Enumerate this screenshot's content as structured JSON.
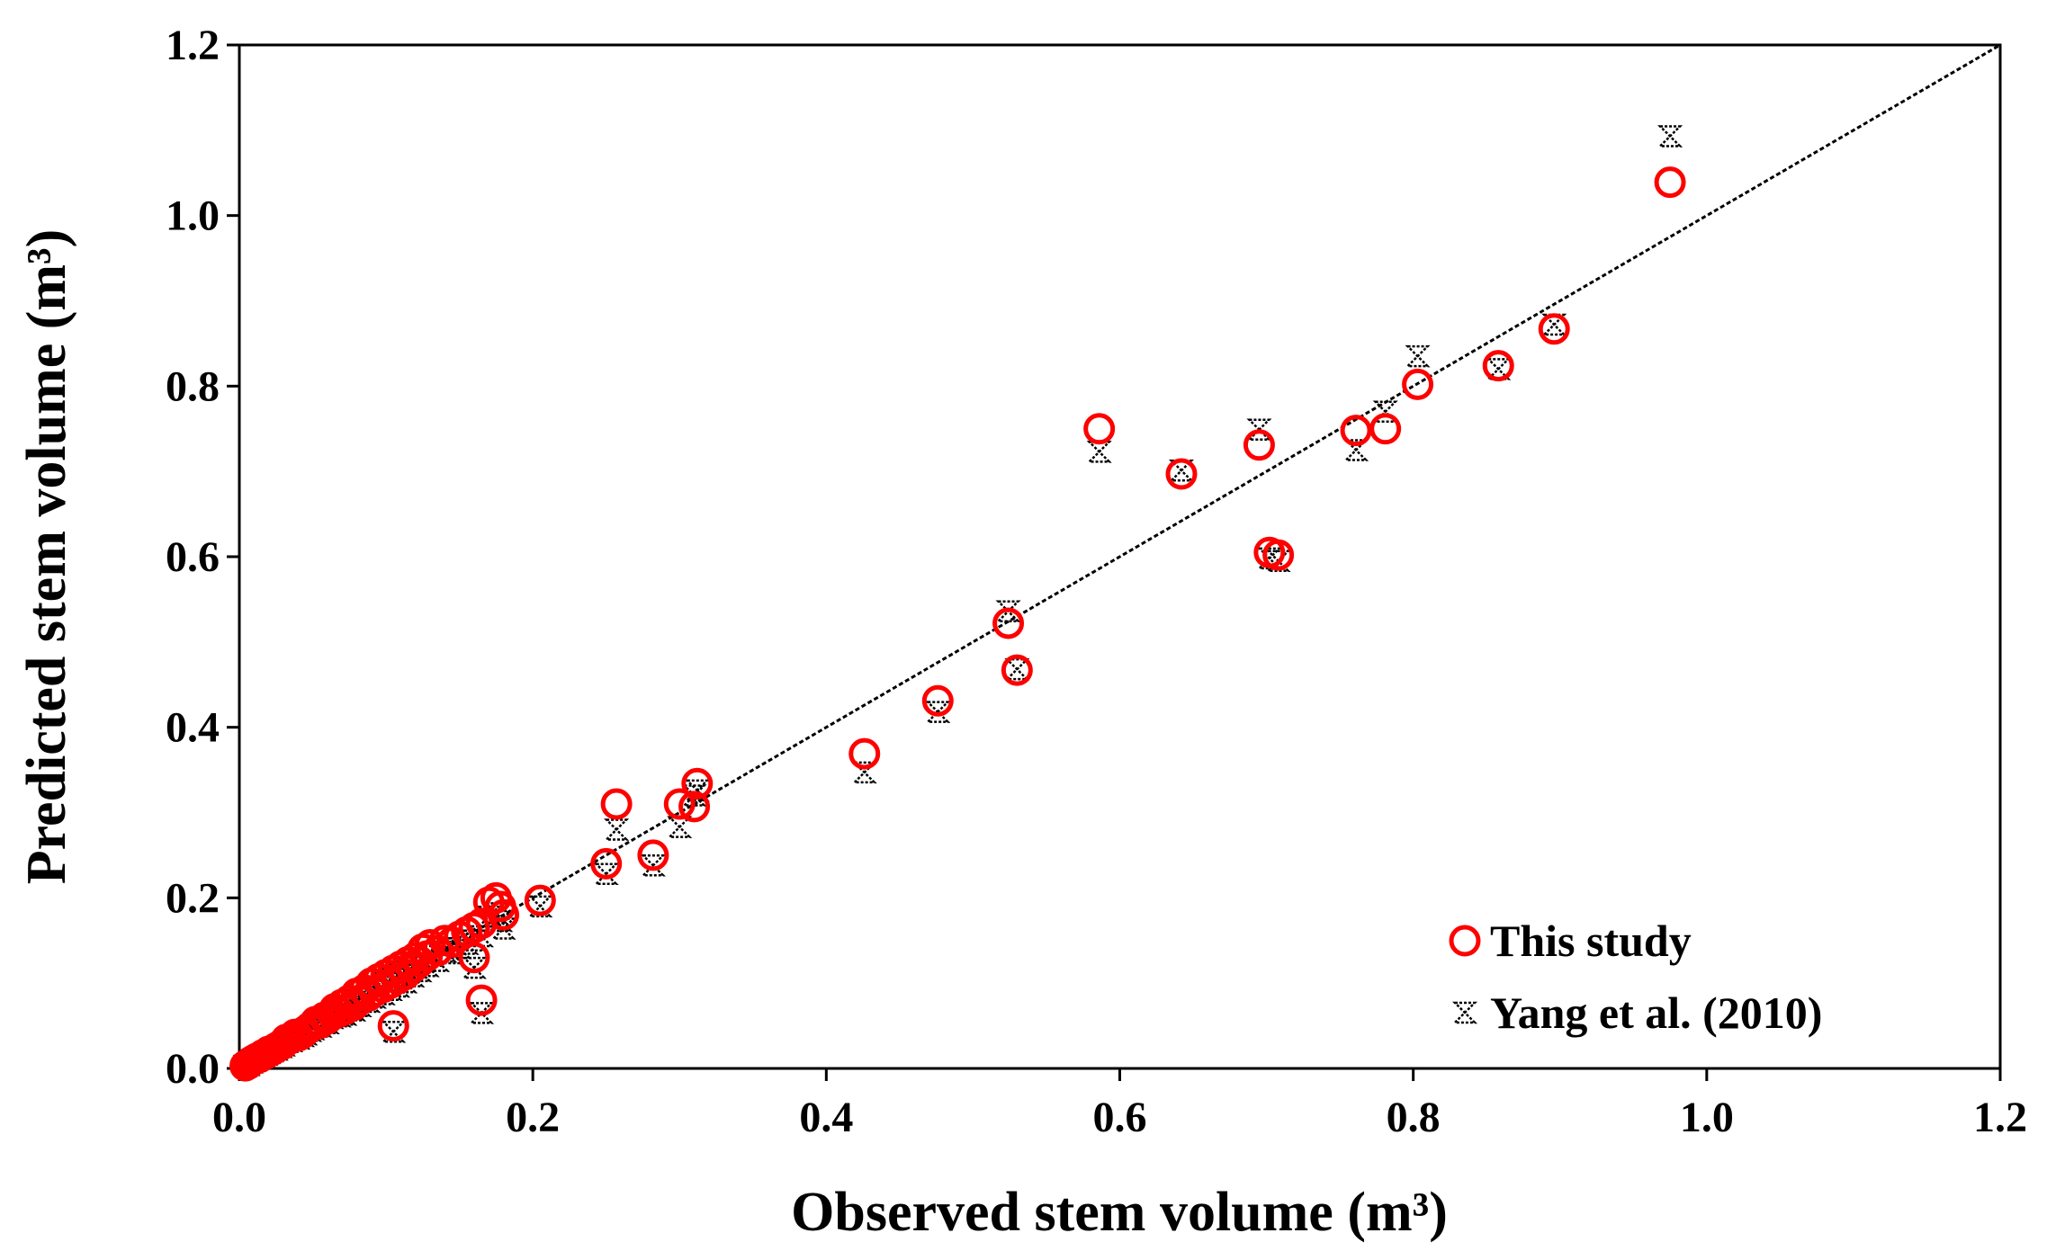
{
  "chart_data": {
    "type": "scatter",
    "title": "",
    "xlabel": "Observed stem volume  (m³)",
    "ylabel": "Predicted stem volume (m³)",
    "xlim": [
      0,
      1.2
    ],
    "ylim": [
      0,
      1.2
    ],
    "x_ticks": [
      "0.0",
      "0.2",
      "0.4",
      "0.6",
      "0.8",
      "1.0",
      "1.2"
    ],
    "y_ticks": [
      "0.0",
      "0.2",
      "0.4",
      "0.6",
      "0.8",
      "1.0",
      "1.2"
    ],
    "grid": false,
    "legend_position": "bottom-right",
    "reference_line": {
      "name": "1:1 line",
      "points": [
        [
          0,
          0
        ],
        [
          1.2,
          1.2
        ]
      ],
      "style": "dashed",
      "color": "#000000"
    },
    "series": [
      {
        "name": "This study",
        "marker": "circle",
        "color": "#ff0000",
        "points": [
          [
            0.004,
            0.003
          ],
          [
            0.006,
            0.005
          ],
          [
            0.008,
            0.008
          ],
          [
            0.01,
            0.01
          ],
          [
            0.012,
            0.012
          ],
          [
            0.014,
            0.013
          ],
          [
            0.016,
            0.016
          ],
          [
            0.018,
            0.017
          ],
          [
            0.02,
            0.02
          ],
          [
            0.022,
            0.021
          ],
          [
            0.025,
            0.024
          ],
          [
            0.028,
            0.027
          ],
          [
            0.03,
            0.029
          ],
          [
            0.032,
            0.034
          ],
          [
            0.035,
            0.035
          ],
          [
            0.038,
            0.04
          ],
          [
            0.04,
            0.038
          ],
          [
            0.043,
            0.041
          ],
          [
            0.045,
            0.044
          ],
          [
            0.048,
            0.048
          ],
          [
            0.05,
            0.05
          ],
          [
            0.052,
            0.055
          ],
          [
            0.055,
            0.053
          ],
          [
            0.058,
            0.06
          ],
          [
            0.06,
            0.058
          ],
          [
            0.063,
            0.065
          ],
          [
            0.065,
            0.07
          ],
          [
            0.068,
            0.066
          ],
          [
            0.07,
            0.075
          ],
          [
            0.072,
            0.069
          ],
          [
            0.075,
            0.08
          ],
          [
            0.078,
            0.074
          ],
          [
            0.08,
            0.088
          ],
          [
            0.082,
            0.08
          ],
          [
            0.085,
            0.092
          ],
          [
            0.088,
            0.085
          ],
          [
            0.09,
            0.1
          ],
          [
            0.092,
            0.09
          ],
          [
            0.095,
            0.105
          ],
          [
            0.098,
            0.095
          ],
          [
            0.1,
            0.11
          ],
          [
            0.103,
            0.1
          ],
          [
            0.105,
            0.115
          ],
          [
            0.108,
            0.105
          ],
          [
            0.11,
            0.12
          ],
          [
            0.113,
            0.11
          ],
          [
            0.115,
            0.125
          ],
          [
            0.118,
            0.118
          ],
          [
            0.12,
            0.13
          ],
          [
            0.123,
            0.125
          ],
          [
            0.125,
            0.14
          ],
          [
            0.128,
            0.132
          ],
          [
            0.13,
            0.145
          ],
          [
            0.135,
            0.138
          ],
          [
            0.14,
            0.15
          ],
          [
            0.145,
            0.148
          ],
          [
            0.15,
            0.155
          ],
          [
            0.155,
            0.16
          ],
          [
            0.16,
            0.165
          ],
          [
            0.165,
            0.17
          ],
          [
            0.17,
            0.195
          ],
          [
            0.175,
            0.2
          ],
          [
            0.178,
            0.19
          ],
          [
            0.18,
            0.18
          ],
          [
            0.16,
            0.13
          ],
          [
            0.105,
            0.05
          ],
          [
            0.165,
            0.08
          ],
          [
            0.205,
            0.197
          ],
          [
            0.25,
            0.24
          ],
          [
            0.257,
            0.31
          ],
          [
            0.282,
            0.25
          ],
          [
            0.3,
            0.31
          ],
          [
            0.31,
            0.307
          ],
          [
            0.312,
            0.334
          ],
          [
            0.426,
            0.369
          ],
          [
            0.476,
            0.431
          ],
          [
            0.524,
            0.522
          ],
          [
            0.53,
            0.467
          ],
          [
            0.586,
            0.75
          ],
          [
            0.642,
            0.697
          ],
          [
            0.695,
            0.731
          ],
          [
            0.702,
            0.605
          ],
          [
            0.708,
            0.602
          ],
          [
            0.761,
            0.748
          ],
          [
            0.781,
            0.75
          ],
          [
            0.803,
            0.802
          ],
          [
            0.858,
            0.824
          ],
          [
            0.896,
            0.867
          ],
          [
            0.975,
            1.039
          ]
        ]
      },
      {
        "name": "Yang et al. (2010)",
        "marker": "hourglass",
        "color": "#000000",
        "points": [
          [
            0.004,
            0.003
          ],
          [
            0.006,
            0.004
          ],
          [
            0.008,
            0.007
          ],
          [
            0.01,
            0.009
          ],
          [
            0.012,
            0.011
          ],
          [
            0.014,
            0.012
          ],
          [
            0.016,
            0.014
          ],
          [
            0.018,
            0.016
          ],
          [
            0.02,
            0.018
          ],
          [
            0.022,
            0.02
          ],
          [
            0.025,
            0.022
          ],
          [
            0.028,
            0.025
          ],
          [
            0.03,
            0.027
          ],
          [
            0.032,
            0.031
          ],
          [
            0.035,
            0.032
          ],
          [
            0.038,
            0.036
          ],
          [
            0.04,
            0.035
          ],
          [
            0.043,
            0.038
          ],
          [
            0.045,
            0.04
          ],
          [
            0.048,
            0.044
          ],
          [
            0.05,
            0.046
          ],
          [
            0.052,
            0.05
          ],
          [
            0.055,
            0.049
          ],
          [
            0.058,
            0.055
          ],
          [
            0.06,
            0.053
          ],
          [
            0.063,
            0.059
          ],
          [
            0.065,
            0.064
          ],
          [
            0.068,
            0.061
          ],
          [
            0.07,
            0.068
          ],
          [
            0.072,
            0.063
          ],
          [
            0.075,
            0.073
          ],
          [
            0.078,
            0.068
          ],
          [
            0.08,
            0.08
          ],
          [
            0.082,
            0.073
          ],
          [
            0.085,
            0.084
          ],
          [
            0.088,
            0.078
          ],
          [
            0.09,
            0.091
          ],
          [
            0.092,
            0.083
          ],
          [
            0.095,
            0.096
          ],
          [
            0.098,
            0.087
          ],
          [
            0.1,
            0.1
          ],
          [
            0.103,
            0.092
          ],
          [
            0.105,
            0.105
          ],
          [
            0.108,
            0.096
          ],
          [
            0.11,
            0.11
          ],
          [
            0.113,
            0.101
          ],
          [
            0.115,
            0.114
          ],
          [
            0.118,
            0.108
          ],
          [
            0.12,
            0.118
          ],
          [
            0.123,
            0.114
          ],
          [
            0.125,
            0.127
          ],
          [
            0.128,
            0.12
          ],
          [
            0.13,
            0.132
          ],
          [
            0.135,
            0.126
          ],
          [
            0.14,
            0.137
          ],
          [
            0.145,
            0.135
          ],
          [
            0.15,
            0.141
          ],
          [
            0.155,
            0.146
          ],
          [
            0.16,
            0.15
          ],
          [
            0.165,
            0.155
          ],
          [
            0.17,
            0.178
          ],
          [
            0.175,
            0.182
          ],
          [
            0.178,
            0.173
          ],
          [
            0.18,
            0.164
          ],
          [
            0.16,
            0.118
          ],
          [
            0.105,
            0.043
          ],
          [
            0.165,
            0.065
          ],
          [
            0.205,
            0.19
          ],
          [
            0.25,
            0.228
          ],
          [
            0.257,
            0.28
          ],
          [
            0.282,
            0.238
          ],
          [
            0.3,
            0.283
          ],
          [
            0.31,
            0.32
          ],
          [
            0.312,
            0.326
          ],
          [
            0.426,
            0.347
          ],
          [
            0.476,
            0.418
          ],
          [
            0.524,
            0.536
          ],
          [
            0.53,
            0.468
          ],
          [
            0.586,
            0.723
          ],
          [
            0.642,
            0.701
          ],
          [
            0.695,
            0.749
          ],
          [
            0.702,
            0.598
          ],
          [
            0.708,
            0.595
          ],
          [
            0.761,
            0.725
          ],
          [
            0.781,
            0.77
          ],
          [
            0.803,
            0.835
          ],
          [
            0.858,
            0.82
          ],
          [
            0.896,
            0.872
          ],
          [
            0.975,
            1.093
          ]
        ]
      }
    ]
  }
}
